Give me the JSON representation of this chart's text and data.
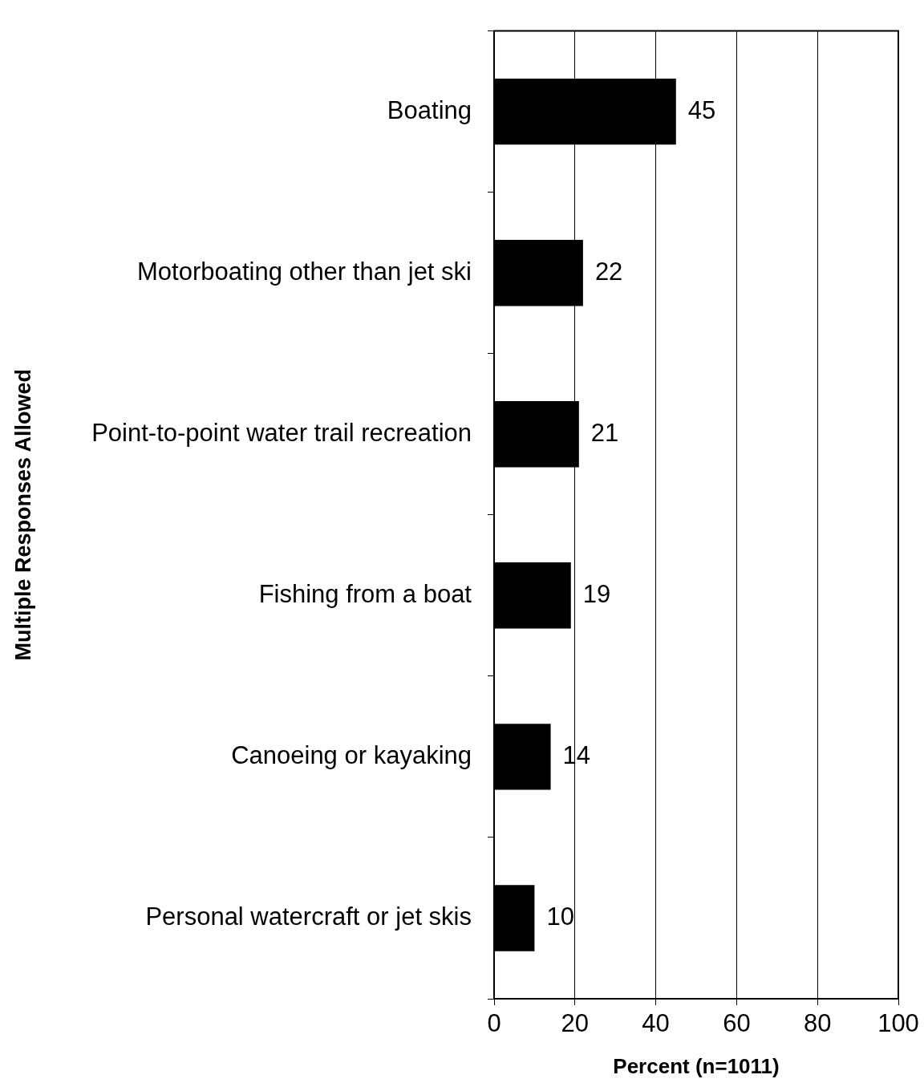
{
  "chart_data": {
    "type": "bar",
    "orientation": "horizontal",
    "xlabel": "Percent (n=1011)",
    "ylabel": "Multiple Responses Allowed",
    "categories": [
      "Boating",
      "Motorboating other than jet ski",
      "Point-to-point water trail recreation",
      "Fishing from a boat",
      "Canoeing or kayaking",
      "Personal watercraft or jet skis"
    ],
    "values": [
      45,
      22,
      21,
      19,
      14,
      10
    ],
    "color": "#000000",
    "data_labels": true,
    "xlim": [
      0,
      100
    ],
    "xticks": [
      0,
      20,
      40,
      60,
      80,
      100
    ],
    "grid": "x",
    "legend": false
  }
}
